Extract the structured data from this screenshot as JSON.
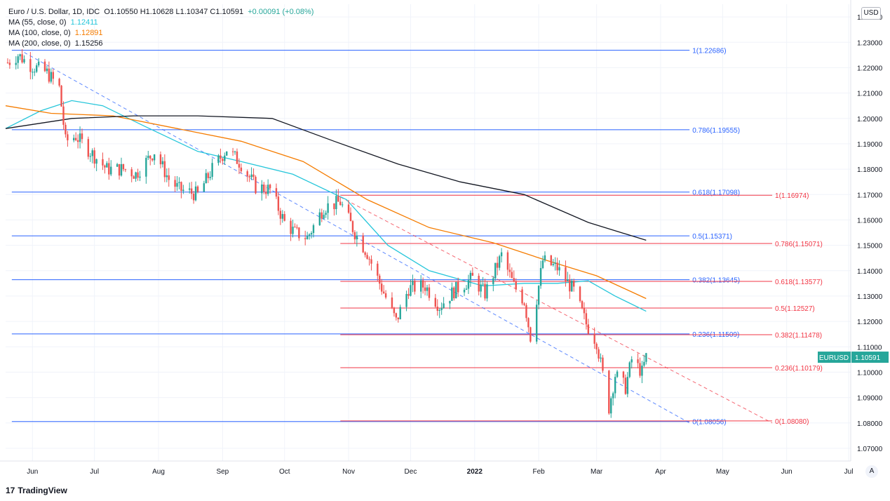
{
  "header": {
    "symbol_title": "Euro / U.S. Dollar, 1D, IDC",
    "ohlc": "O1.10550  H1.10628  L1.10347  C1.10591",
    "change": "+0.00091 (+0.08%)",
    "ma55_label": "MA (55, close, 0)",
    "ma55_value": "1.12411",
    "ma100_label": "MA (100, close, 0)",
    "ma100_value": "1.12891",
    "ma200_label": "MA (200, close, 0)",
    "ma200_value": "1.15256"
  },
  "currency_button": "USD",
  "auto_button": "A",
  "brand": {
    "logo": "17",
    "name": "TradingView"
  },
  "colors": {
    "up": "#26a69a",
    "down": "#ef5350",
    "blue_fib": "#2962ff",
    "red_fib": "#f23645",
    "ma55": "#26c6da",
    "ma100": "#f57c00",
    "ma200": "#131722",
    "price_tag": "#26a69a"
  },
  "chart_data": {
    "type": "candlestick",
    "ylim": [
      1.065,
      1.245
    ],
    "y_ticks": [
      1.07,
      1.08,
      1.09,
      1.1,
      1.11,
      1.12,
      1.13,
      1.14,
      1.15,
      1.16,
      1.17,
      1.18,
      1.19,
      1.2,
      1.21,
      1.22,
      1.23,
      1.24
    ],
    "y_tick_labels": [
      "1.07000",
      "1.08000",
      "1.09000",
      "1.10000",
      "1.11000",
      "1.12000",
      "1.13000",
      "1.14000",
      "1.15000",
      "1.16000",
      "1.17000",
      "1.18000",
      "1.19000",
      "1.20000",
      "1.21000",
      "1.22000",
      "1.23000",
      "1.24000"
    ],
    "x_range": [
      "2021-05-19",
      "2022-07-02"
    ],
    "x_ticks": [
      {
        "date": "2021-06-01",
        "label": "Jun"
      },
      {
        "date": "2021-07-01",
        "label": "Jul"
      },
      {
        "date": "2021-08-01",
        "label": "Aug"
      },
      {
        "date": "2021-09-01",
        "label": "Sep"
      },
      {
        "date": "2021-10-01",
        "label": "Oct"
      },
      {
        "date": "2021-11-01",
        "label": "Nov"
      },
      {
        "date": "2021-12-01",
        "label": "Dec"
      },
      {
        "date": "2022-01-01",
        "label": "2022"
      },
      {
        "date": "2022-02-01",
        "label": "Feb"
      },
      {
        "date": "2022-03-01",
        "label": "Mar"
      },
      {
        "date": "2022-04-01",
        "label": "Apr"
      },
      {
        "date": "2022-05-01",
        "label": "May"
      },
      {
        "date": "2022-06-01",
        "label": "Jun"
      },
      {
        "date": "2022-07-01",
        "label": "Jul"
      }
    ],
    "close_path": [
      [
        "2021-05-20",
        1.222
      ],
      [
        "2021-05-25",
        1.225
      ],
      [
        "2021-05-31",
        1.221
      ],
      [
        "2021-06-08",
        1.218
      ],
      [
        "2021-06-14",
        1.212
      ],
      [
        "2021-06-17",
        1.191
      ],
      [
        "2021-06-22",
        1.193
      ],
      [
        "2021-06-30",
        1.186
      ],
      [
        "2021-07-07",
        1.18
      ],
      [
        "2021-07-16",
        1.18
      ],
      [
        "2021-07-21",
        1.178
      ],
      [
        "2021-07-30",
        1.187
      ],
      [
        "2021-08-06",
        1.176
      ],
      [
        "2021-08-11",
        1.172
      ],
      [
        "2021-08-20",
        1.17
      ],
      [
        "2021-08-27",
        1.18
      ],
      [
        "2021-09-03",
        1.188
      ],
      [
        "2021-09-10",
        1.182
      ],
      [
        "2021-09-17",
        1.173
      ],
      [
        "2021-09-24",
        1.172
      ],
      [
        "2021-10-01",
        1.159
      ],
      [
        "2021-10-06",
        1.155
      ],
      [
        "2021-10-12",
        1.153
      ],
      [
        "2021-10-20",
        1.165
      ],
      [
        "2021-10-28",
        1.167
      ],
      [
        "2021-11-04",
        1.155
      ],
      [
        "2021-11-10",
        1.147
      ],
      [
        "2021-11-15",
        1.137
      ],
      [
        "2021-11-24",
        1.12
      ],
      [
        "2021-11-30",
        1.133
      ],
      [
        "2021-12-08",
        1.134
      ],
      [
        "2021-12-15",
        1.126
      ],
      [
        "2021-12-22",
        1.132
      ],
      [
        "2021-12-31",
        1.137
      ],
      [
        "2022-01-06",
        1.131
      ],
      [
        "2022-01-14",
        1.146
      ],
      [
        "2022-01-20",
        1.134
      ],
      [
        "2022-01-25",
        1.128
      ],
      [
        "2022-01-28",
        1.114
      ],
      [
        "2022-02-03",
        1.144
      ],
      [
        "2022-02-10",
        1.141
      ],
      [
        "2022-02-18",
        1.132
      ],
      [
        "2022-02-24",
        1.119
      ],
      [
        "2022-03-01",
        1.112
      ],
      [
        "2022-03-07",
        1.086
      ],
      [
        "2022-03-10",
        1.099
      ],
      [
        "2022-03-15",
        1.094
      ],
      [
        "2022-03-18",
        1.105
      ],
      [
        "2022-03-23",
        1.1
      ],
      [
        "2022-03-25",
        1.106
      ]
    ],
    "moving_averages": [
      {
        "name": "MA 55",
        "points": [
          [
            "2021-05-19",
            1.196
          ],
          [
            "2021-06-05",
            1.203
          ],
          [
            "2021-06-20",
            1.207
          ],
          [
            "2021-07-05",
            1.205
          ],
          [
            "2021-07-25",
            1.197
          ],
          [
            "2021-08-20",
            1.187
          ],
          [
            "2021-09-10",
            1.183
          ],
          [
            "2021-10-05",
            1.178
          ],
          [
            "2021-10-31",
            1.168
          ],
          [
            "2021-11-20",
            1.15
          ],
          [
            "2021-12-10",
            1.14
          ],
          [
            "2022-01-05",
            1.134
          ],
          [
            "2022-01-25",
            1.135
          ],
          [
            "2022-02-10",
            1.135
          ],
          [
            "2022-02-25",
            1.136
          ],
          [
            "2022-03-10",
            1.13
          ],
          [
            "2022-03-25",
            1.124
          ]
        ]
      },
      {
        "name": "MA 100",
        "points": [
          [
            "2021-05-19",
            1.205
          ],
          [
            "2021-06-10",
            1.202
          ],
          [
            "2021-07-10",
            1.201
          ],
          [
            "2021-08-10",
            1.196
          ],
          [
            "2021-09-10",
            1.191
          ],
          [
            "2021-10-10",
            1.183
          ],
          [
            "2021-11-10",
            1.168
          ],
          [
            "2021-12-10",
            1.157
          ],
          [
            "2022-01-10",
            1.151
          ],
          [
            "2022-02-05",
            1.144
          ],
          [
            "2022-03-01",
            1.138
          ],
          [
            "2022-03-25",
            1.129
          ]
        ]
      },
      {
        "name": "MA 200",
        "points": [
          [
            "2021-05-19",
            1.196
          ],
          [
            "2021-06-20",
            1.2
          ],
          [
            "2021-07-20",
            1.201
          ],
          [
            "2021-08-20",
            1.201
          ],
          [
            "2021-09-25",
            1.2
          ],
          [
            "2021-10-25",
            1.191
          ],
          [
            "2021-11-25",
            1.182
          ],
          [
            "2021-12-25",
            1.175
          ],
          [
            "2022-01-25",
            1.17
          ],
          [
            "2022-02-25",
            1.159
          ],
          [
            "2022-03-25",
            1.152
          ]
        ]
      }
    ],
    "fib_blue": [
      {
        "level": 1.22686,
        "label": "1(1.22686)"
      },
      {
        "level": 1.19555,
        "label": "0.786(1.19555)"
      },
      {
        "level": 1.17098,
        "label": "0.618(1.17098)"
      },
      {
        "level": 1.15371,
        "label": "0.5(1.15371)"
      },
      {
        "level": 1.13645,
        "label": "0.382(1.13645)"
      },
      {
        "level": 1.11509,
        "label": "0.236(1.11509)"
      },
      {
        "level": 1.08056,
        "label": "0(1.08056)"
      }
    ],
    "fib_blue_range": [
      "2021-05-22",
      "2022-04-15"
    ],
    "fib_red": [
      {
        "level": 1.16974,
        "label": "1(1.16974)"
      },
      {
        "level": 1.15071,
        "label": "0.786(1.15071)"
      },
      {
        "level": 1.13577,
        "label": "0.618(1.13577)"
      },
      {
        "level": 1.12527,
        "label": "0.5(1.12527)"
      },
      {
        "level": 1.11478,
        "label": "0.382(1.11478)"
      },
      {
        "level": 1.10179,
        "label": "0.236(1.10179)"
      },
      {
        "level": 1.0808,
        "label": "0(1.08080)"
      }
    ],
    "fib_red_range": [
      "2021-10-28",
      "2022-05-25"
    ],
    "trendlines": [
      {
        "color": "blue",
        "from": [
          "2021-05-28",
          1.226
        ],
        "to": [
          "2022-04-15",
          1.08
        ]
      },
      {
        "color": "red",
        "from": [
          "2021-10-28",
          1.169
        ],
        "to": [
          "2022-05-25",
          1.08
        ]
      }
    ],
    "last_price": {
      "symbol": "EURUSD",
      "value": "1.10591",
      "level": 1.10591
    }
  }
}
